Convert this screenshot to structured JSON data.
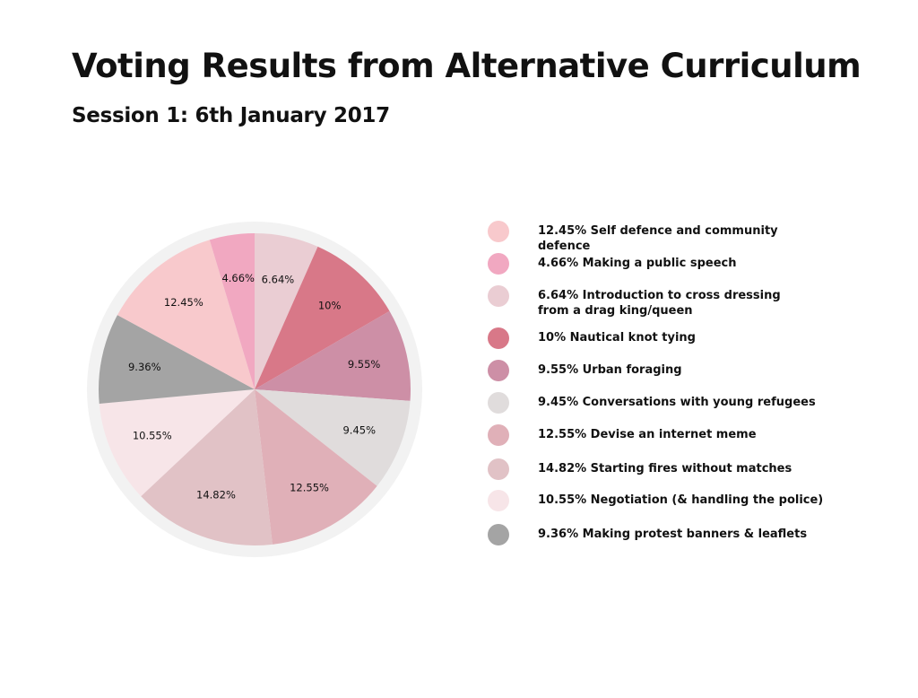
{
  "title": "Voting Results from Alternative Curriculum",
  "subtitle": "Session 1: 6th January 2017",
  "chart_data": {
    "type": "pie",
    "title": "Voting Results from Alternative Curriculum",
    "subtitle": "Session 1: 6th January 2017",
    "legend_position": "right",
    "slices": [
      {
        "label": "6.64%",
        "value": 6.64,
        "name": "Introduction to cross dressing from a drag king/queen",
        "color": "#eacdd3"
      },
      {
        "label": "10%",
        "value": 10,
        "name": "Nautical knot tying",
        "color": "#d87888"
      },
      {
        "label": "9.55%",
        "value": 9.55,
        "name": "Urban foraging",
        "color": "#cd8fa6"
      },
      {
        "label": "9.45%",
        "value": 9.45,
        "name": "Conversations with young refugees",
        "color": "#e0dcdc"
      },
      {
        "label": "12.55%",
        "value": 12.55,
        "name": "Devise an internet meme",
        "color": "#e0b0b8"
      },
      {
        "label": "14.82%",
        "value": 14.82,
        "name": "Starting fires without matches",
        "color": "#e1c2c6"
      },
      {
        "label": "10.55%",
        "value": 10.55,
        "name": "Negotiation (& handling the police)",
        "color": "#f7e5e8"
      },
      {
        "label": "9.36%",
        "value": 9.36,
        "name": "Making protest banners & leaflets",
        "color": "#a4a4a4"
      },
      {
        "label": "12.45%",
        "value": 12.45,
        "name": "Self defence and community defence",
        "color": "#f8c9cc"
      },
      {
        "label": "4.66%",
        "value": 4.66,
        "name": "Making a public speech",
        "color": "#f1a8c1"
      }
    ],
    "legend": [
      {
        "text": "12.45% Self defence and community defence",
        "color": "#f8c9cc"
      },
      {
        "text": "4.66% Making a public speech",
        "color": "#f1a8c1"
      },
      {
        "text": "6.64% Introduction to cross dressing from a drag king/queen",
        "color": "#eacdd3"
      },
      {
        "text": "10% Nautical knot tying",
        "color": "#d87888"
      },
      {
        "text": "9.55% Urban foraging",
        "color": "#cd8fa6"
      },
      {
        "text": "9.45% Conversations with young refugees",
        "color": "#e0dcdc"
      },
      {
        "text": "12.55% Devise an internet meme",
        "color": "#e0b0b8"
      },
      {
        "text": "14.82% Starting fires without matches",
        "color": "#e1c2c6"
      },
      {
        "text": "10.55% Negotiation (& handling the police)",
        "color": "#f7e5e8"
      },
      {
        "text": "9.36% Making protest banners & leaflets",
        "color": "#a4a4a4"
      }
    ],
    "ring_color": "#f2f2f2"
  }
}
